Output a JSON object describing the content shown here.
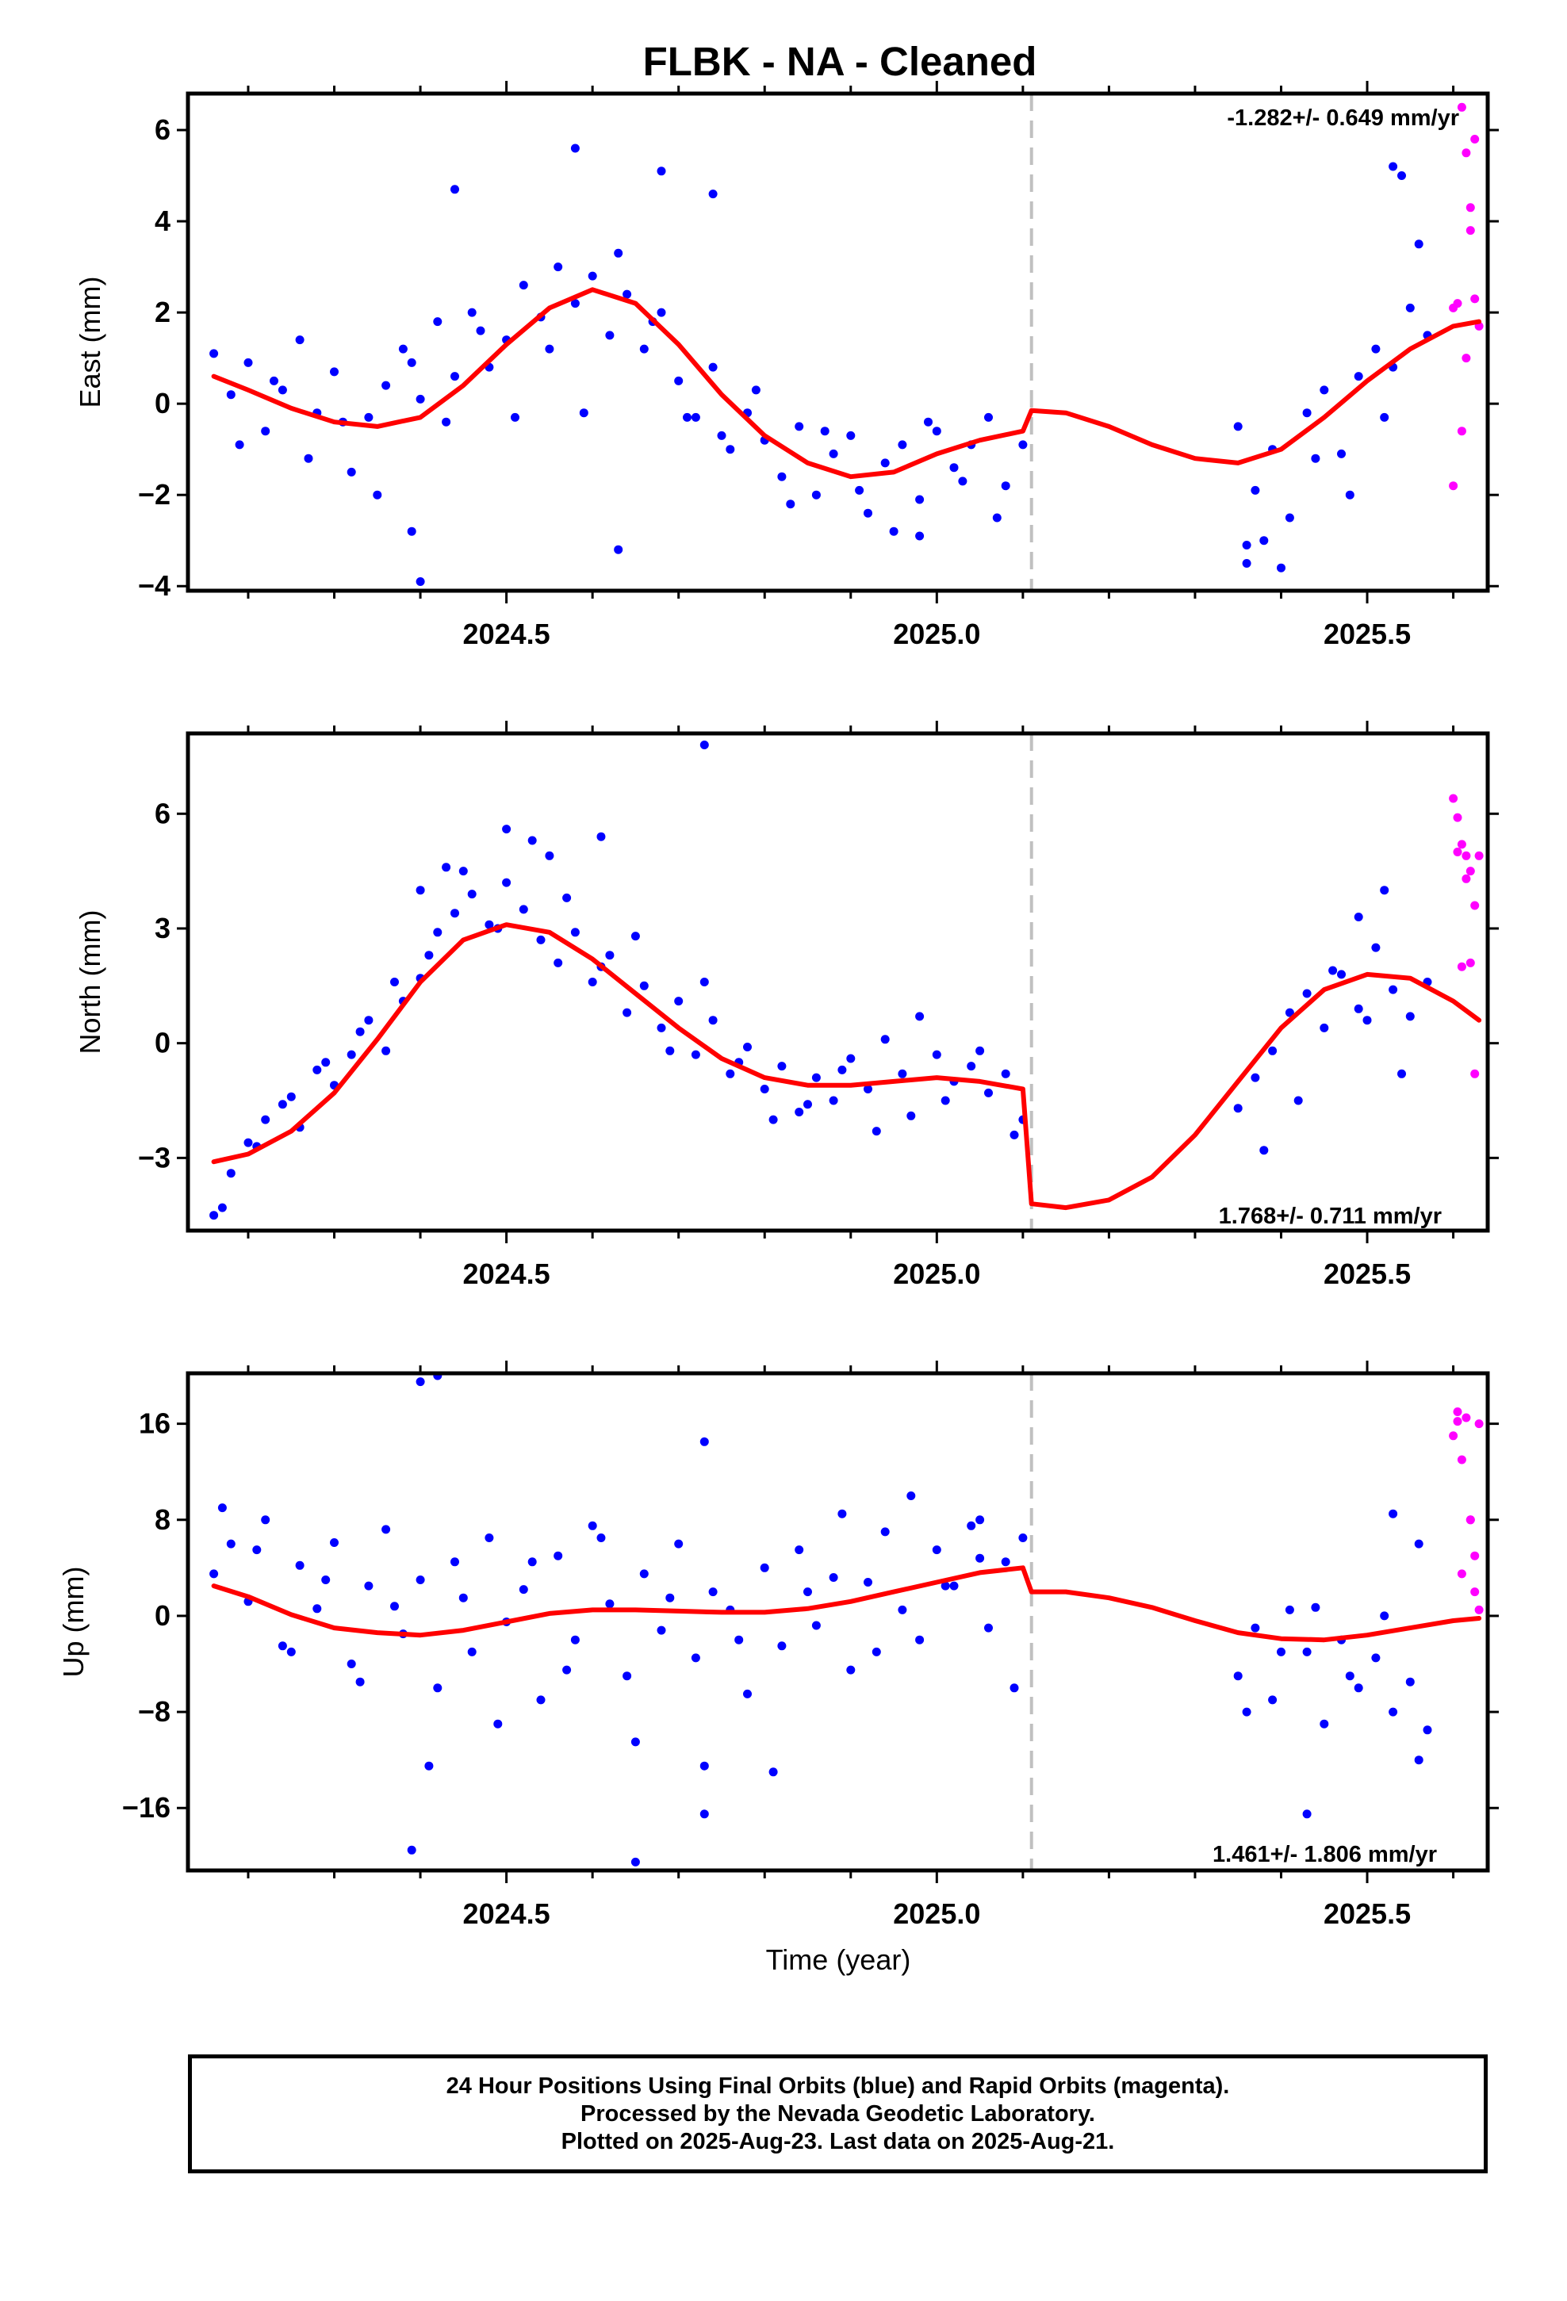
{
  "title": "FLBK  - NA - Cleaned",
  "colors": {
    "final_orbits": "#0000ff",
    "rapid_orbits": "#ff00ff",
    "model": "#ff0000",
    "offset_line": "#c0c0c0"
  },
  "xaxis": {
    "label": "Time (year)",
    "ticks": [
      2024.5,
      2025.0,
      2025.5
    ],
    "tick_labels": [
      "2024.5",
      "2025.0",
      "2025.5"
    ]
  },
  "footer": {
    "line1": "24 Hour Positions Using Final Orbits (blue) and Rapid Orbits (magenta).",
    "line2": "Processed by the Nevada Geodetic Laboratory.",
    "line3": "Plotted on 2025-Aug-23. Last data on 2025-Aug-21."
  },
  "chart_data": [
    {
      "type": "scatter",
      "title": "FLBK  - NA - Cleaned",
      "ylabel": "East (mm)",
      "xlim": [
        2024.13,
        2025.64
      ],
      "ylim": [
        -4.1,
        6.8
      ],
      "yticks": [
        -4,
        -2,
        0,
        2,
        4,
        6
      ],
      "ytick_labels": [
        "−4",
        "−2",
        "0",
        "2",
        "4",
        "6"
      ],
      "rate_label": "-1.282+/- 0.649 mm/yr",
      "offset_epoch": 2025.11,
      "model": {
        "x": [
          2024.16,
          2024.2,
          2024.25,
          2024.3,
          2024.35,
          2024.4,
          2024.45,
          2024.5,
          2024.55,
          2024.6,
          2024.65,
          2024.7,
          2024.75,
          2024.8,
          2024.85,
          2024.9,
          2024.95,
          2025.0,
          2025.05,
          2025.1,
          2025.11,
          2025.15,
          2025.2,
          2025.25,
          2025.3,
          2025.35,
          2025.4,
          2025.45,
          2025.5,
          2025.55,
          2025.6,
          2025.63
        ],
        "y": [
          0.6,
          0.3,
          -0.1,
          -0.4,
          -0.5,
          -0.3,
          0.4,
          1.3,
          2.1,
          2.5,
          2.2,
          1.3,
          0.2,
          -0.7,
          -1.3,
          -1.6,
          -1.5,
          -1.1,
          -0.8,
          -0.6,
          -0.15,
          -0.2,
          -0.5,
          -0.9,
          -1.2,
          -1.3,
          -1.0,
          -0.3,
          0.5,
          1.2,
          1.7,
          1.8
        ]
      },
      "series": [
        {
          "name": "Final Orbits",
          "x": [
            2024.16,
            2024.18,
            2024.2,
            2024.22,
            2024.24,
            2024.26,
            2024.28,
            2024.3,
            2024.32,
            2024.34,
            2024.36,
            2024.38,
            2024.4,
            2024.42,
            2024.44,
            2024.46,
            2024.48,
            2024.5,
            2024.52,
            2024.54,
            2024.56,
            2024.58,
            2024.6,
            2024.62,
            2024.64,
            2024.66,
            2024.68,
            2024.7,
            2024.72,
            2024.74,
            2024.76,
            2024.78,
            2024.8,
            2024.82,
            2024.84,
            2024.86,
            2024.88,
            2024.9,
            2024.92,
            2024.94,
            2024.96,
            2024.98,
            2025.0,
            2025.02,
            2025.04,
            2025.06,
            2025.08,
            2025.1,
            2025.35,
            2025.37,
            2025.39,
            2025.41,
            2025.43,
            2025.45,
            2025.47,
            2025.49,
            2025.51,
            2025.53,
            2025.55,
            2025.57,
            2024.19,
            2024.23,
            2024.27,
            2024.31,
            2024.35,
            2024.39,
            2024.43,
            2024.47,
            2024.51,
            2024.55,
            2024.59,
            2024.63,
            2024.67,
            2024.71,
            2024.75,
            2024.79,
            2024.83,
            2024.87,
            2024.91,
            2024.95,
            2024.99,
            2025.03,
            2025.07,
            2025.36,
            2025.4,
            2025.44,
            2025.48,
            2025.52,
            2025.56,
            2024.44,
            2024.58,
            2024.68,
            2024.74,
            2024.39,
            2024.4,
            2024.63,
            2024.98,
            2025.36,
            2025.38,
            2025.53,
            2025.54
          ],
          "y": [
            1.1,
            0.2,
            0.9,
            -0.6,
            0.3,
            1.4,
            -0.2,
            0.7,
            -1.5,
            -0.3,
            0.4,
            1.2,
            0.1,
            1.8,
            0.6,
            2.0,
            0.8,
            1.4,
            2.6,
            1.9,
            3.0,
            2.2,
            2.8,
            1.5,
            2.4,
            1.2,
            2.0,
            0.5,
            -0.3,
            0.8,
            -1.0,
            -0.2,
            -0.8,
            -1.6,
            -0.5,
            -2.0,
            -1.1,
            -0.7,
            -2.4,
            -1.3,
            -0.9,
            -2.1,
            -0.6,
            -1.4,
            -0.9,
            -0.3,
            -1.8,
            -0.9,
            -0.5,
            -1.9,
            -1.0,
            -2.5,
            -0.2,
            0.3,
            -1.1,
            0.6,
            1.2,
            0.8,
            2.1,
            1.5,
            -0.9,
            0.5,
            -1.2,
            -0.4,
            -2.0,
            0.9,
            -0.4,
            1.6,
            -0.3,
            1.2,
            -0.2,
            3.3,
            1.8,
            -0.3,
            -0.7,
            0.3,
            -2.2,
            -0.6,
            -1.9,
            -2.8,
            -0.4,
            -1.7,
            -2.5,
            -3.1,
            -3.6,
            -1.2,
            -2.0,
            -0.3,
            3.5,
            4.7,
            5.6,
            5.1,
            4.6,
            -2.8,
            -3.9,
            -3.2,
            -2.9,
            -3.5,
            -3.0,
            5.2,
            5.0
          ]
        },
        {
          "name": "Rapid Orbits",
          "x": [
            2025.6,
            2025.605,
            2025.61,
            2025.615,
            2025.62,
            2025.625,
            2025.63,
            2025.61,
            2025.62,
            2025.6,
            2025.615,
            2025.625
          ],
          "y": [
            -1.8,
            2.2,
            6.5,
            5.5,
            4.3,
            5.8,
            1.7,
            -0.6,
            3.8,
            2.1,
            1.0,
            2.3
          ]
        }
      ]
    },
    {
      "type": "scatter",
      "ylabel": "North (mm)",
      "xlim": [
        2024.13,
        2025.64
      ],
      "ylim": [
        -4.9,
        8.1
      ],
      "yticks": [
        -3,
        0,
        3,
        6
      ],
      "ytick_labels": [
        "−3",
        "0",
        "3",
        "6"
      ],
      "rate_label": "1.768+/- 0.711 mm/yr",
      "offset_epoch": 2025.11,
      "model": {
        "x": [
          2024.16,
          2024.2,
          2024.25,
          2024.3,
          2024.35,
          2024.4,
          2024.45,
          2024.5,
          2024.55,
          2024.6,
          2024.65,
          2024.7,
          2024.75,
          2024.8,
          2024.85,
          2024.9,
          2024.95,
          2025.0,
          2025.05,
          2025.1,
          2025.11,
          2025.15,
          2025.2,
          2025.25,
          2025.3,
          2025.35,
          2025.4,
          2025.45,
          2025.5,
          2025.55,
          2025.6,
          2025.63
        ],
        "y": [
          -3.1,
          -2.9,
          -2.3,
          -1.3,
          0.1,
          1.6,
          2.7,
          3.1,
          2.9,
          2.2,
          1.3,
          0.4,
          -0.4,
          -0.9,
          -1.1,
          -1.1,
          -1.0,
          -0.9,
          -1.0,
          -1.2,
          -4.2,
          -4.3,
          -4.1,
          -3.5,
          -2.4,
          -1.0,
          0.4,
          1.4,
          1.8,
          1.7,
          1.1,
          0.6
        ]
      },
      "series": [
        {
          "name": "Final Orbits",
          "x": [
            2024.16,
            2024.18,
            2024.2,
            2024.22,
            2024.24,
            2024.26,
            2024.28,
            2024.3,
            2024.32,
            2024.34,
            2024.36,
            2024.38,
            2024.4,
            2024.42,
            2024.44,
            2024.46,
            2024.48,
            2024.5,
            2024.52,
            2024.54,
            2024.56,
            2024.58,
            2024.6,
            2024.62,
            2024.64,
            2024.66,
            2024.68,
            2024.7,
            2024.72,
            2024.74,
            2024.76,
            2024.78,
            2024.8,
            2024.82,
            2024.84,
            2024.86,
            2024.88,
            2024.9,
            2024.92,
            2024.94,
            2024.96,
            2024.98,
            2025.0,
            2025.02,
            2025.04,
            2025.06,
            2025.08,
            2025.1,
            2025.35,
            2025.37,
            2025.39,
            2025.41,
            2025.43,
            2025.45,
            2025.47,
            2025.49,
            2025.51,
            2025.53,
            2025.55,
            2025.57,
            2024.17,
            2024.21,
            2024.25,
            2024.29,
            2024.33,
            2024.37,
            2024.41,
            2024.45,
            2024.49,
            2024.53,
            2024.57,
            2024.61,
            2024.65,
            2024.69,
            2024.73,
            2024.77,
            2024.81,
            2024.85,
            2024.89,
            2024.93,
            2024.97,
            2025.01,
            2025.05,
            2025.09,
            2025.38,
            2025.42,
            2025.46,
            2025.5,
            2025.54,
            2024.73,
            2024.61,
            2024.4,
            2024.43,
            2024.5,
            2024.55,
            2025.49,
            2025.52
          ],
          "y": [
            -4.5,
            -3.4,
            -2.6,
            -2.0,
            -1.6,
            -2.2,
            -0.7,
            -1.1,
            -0.3,
            0.6,
            -0.2,
            1.1,
            1.7,
            2.9,
            3.4,
            3.9,
            3.1,
            4.2,
            3.5,
            2.7,
            2.1,
            2.9,
            1.6,
            2.3,
            0.8,
            1.5,
            0.4,
            1.1,
            -0.3,
            0.6,
            -0.8,
            -0.1,
            -1.2,
            -0.6,
            -1.8,
            -0.9,
            -1.5,
            -0.4,
            -1.2,
            0.1,
            -0.8,
            0.7,
            -0.3,
            -1.0,
            -0.6,
            -1.3,
            -0.8,
            -2.0,
            -1.7,
            -0.9,
            -0.2,
            0.8,
            1.3,
            0.4,
            1.8,
            0.9,
            2.5,
            1.4,
            0.7,
            1.6,
            -4.3,
            -2.7,
            -1.4,
            -0.5,
            0.3,
            1.6,
            2.3,
            4.5,
            3.0,
            5.3,
            3.8,
            2.0,
            2.8,
            -0.2,
            1.6,
            -0.5,
            -2.0,
            -1.6,
            -0.7,
            -2.3,
            -1.9,
            -1.5,
            -0.2,
            -2.4,
            -2.8,
            -1.5,
            1.9,
            0.6,
            -0.8,
            7.8,
            5.4,
            4.0,
            4.6,
            5.6,
            4.9,
            3.3,
            4.0
          ]
        },
        {
          "name": "Rapid Orbits",
          "x": [
            2025.6,
            2025.605,
            2025.61,
            2025.615,
            2025.62,
            2025.625,
            2025.63,
            2025.61,
            2025.62,
            2025.625,
            2025.605,
            2025.615
          ],
          "y": [
            6.4,
            5.9,
            5.2,
            4.9,
            4.5,
            3.6,
            4.9,
            2.0,
            2.1,
            -0.8,
            5.0,
            4.3
          ]
        }
      ]
    },
    {
      "type": "scatter",
      "ylabel": "Up (mm)",
      "xlabel": "Time (year)",
      "xlim": [
        2024.13,
        2025.64
      ],
      "ylim": [
        -21.2,
        20.2
      ],
      "yticks": [
        -16,
        -8,
        0,
        8,
        16
      ],
      "ytick_labels": [
        "−16",
        "−8",
        "0",
        "8",
        "16"
      ],
      "rate_label": "1.461+/- 1.806 mm/yr",
      "offset_epoch": 2025.11,
      "model": {
        "x": [
          2024.16,
          2024.2,
          2024.25,
          2024.3,
          2024.35,
          2024.4,
          2024.45,
          2024.5,
          2024.55,
          2024.6,
          2024.65,
          2024.7,
          2024.75,
          2024.8,
          2024.85,
          2024.9,
          2024.95,
          2025.0,
          2025.05,
          2025.1,
          2025.11,
          2025.15,
          2025.2,
          2025.25,
          2025.3,
          2025.35,
          2025.4,
          2025.45,
          2025.5,
          2025.55,
          2025.6,
          2025.63
        ],
        "y": [
          2.5,
          1.6,
          0.1,
          -1.0,
          -1.4,
          -1.6,
          -1.2,
          -0.5,
          0.2,
          0.5,
          0.5,
          0.4,
          0.3,
          0.3,
          0.6,
          1.2,
          2.0,
          2.8,
          3.6,
          4.0,
          2.0,
          2.0,
          1.5,
          0.7,
          -0.4,
          -1.4,
          -1.9,
          -2.0,
          -1.6,
          -1.0,
          -0.4,
          -0.2
        ]
      },
      "series": [
        {
          "name": "Final Orbits",
          "x": [
            2024.16,
            2024.18,
            2024.2,
            2024.22,
            2024.24,
            2024.26,
            2024.28,
            2024.3,
            2024.32,
            2024.34,
            2024.36,
            2024.38,
            2024.4,
            2024.42,
            2024.44,
            2024.46,
            2024.48,
            2024.5,
            2024.52,
            2024.54,
            2024.56,
            2024.58,
            2024.6,
            2024.62,
            2024.64,
            2024.66,
            2024.68,
            2024.7,
            2024.72,
            2024.74,
            2024.76,
            2024.78,
            2024.8,
            2024.82,
            2024.84,
            2024.86,
            2024.88,
            2024.9,
            2024.92,
            2024.94,
            2024.96,
            2024.98,
            2025.0,
            2025.02,
            2025.04,
            2025.06,
            2025.08,
            2025.1,
            2025.35,
            2025.37,
            2025.39,
            2025.41,
            2025.43,
            2025.45,
            2025.47,
            2025.49,
            2025.51,
            2025.53,
            2025.55,
            2025.57,
            2024.17,
            2024.21,
            2024.25,
            2024.29,
            2024.33,
            2024.37,
            2024.41,
            2024.45,
            2024.49,
            2024.53,
            2024.57,
            2024.61,
            2024.65,
            2024.69,
            2024.73,
            2024.77,
            2024.81,
            2024.85,
            2024.89,
            2024.93,
            2024.97,
            2025.01,
            2025.05,
            2025.09,
            2025.36,
            2025.4,
            2025.44,
            2025.48,
            2025.52,
            2025.56,
            2024.4,
            2024.42,
            2024.73,
            2024.39,
            2024.65,
            2024.73,
            2025.43,
            2025.53,
            2025.56,
            2025.05
          ],
          "y": [
            3.5,
            6.0,
            1.2,
            8.0,
            -2.5,
            4.2,
            0.6,
            6.1,
            -4.0,
            2.5,
            7.2,
            -1.5,
            3.0,
            -6.0,
            4.5,
            -3.0,
            6.5,
            -0.5,
            2.2,
            -7.0,
            5.0,
            -2.0,
            7.5,
            1.0,
            -5.0,
            3.5,
            -1.2,
            6.0,
            -3.5,
            2.0,
            0.5,
            -6.5,
            4.0,
            -2.5,
            5.5,
            -0.8,
            3.2,
            -4.5,
            2.8,
            7.0,
            0.5,
            -2.0,
            5.5,
            2.5,
            7.5,
            -1.0,
            4.5,
            6.5,
            -5.0,
            -1.0,
            -7.0,
            0.5,
            -3.0,
            -9.0,
            -2.0,
            -6.0,
            -3.5,
            -8.0,
            -5.5,
            -9.5,
            9.0,
            5.5,
            -3.0,
            3.0,
            -5.5,
            0.8,
            -12.5,
            1.5,
            -9.0,
            4.5,
            -4.5,
            6.5,
            -10.5,
            1.5,
            -12.5,
            -2.0,
            -13.0,
            2.0,
            8.5,
            -3.0,
            10.0,
            2.5,
            4.8,
            -6.0,
            -8.0,
            -3.0,
            0.7,
            -5.0,
            0.0,
            -12.0,
            19.5,
            20.0,
            14.5,
            -19.5,
            -20.5,
            -16.5,
            -16.5,
            8.5,
            6.0,
            8.0
          ]
        },
        {
          "name": "Rapid Orbits",
          "x": [
            2025.6,
            2025.605,
            2025.61,
            2025.615,
            2025.62,
            2025.625,
            2025.63,
            2025.61,
            2025.62,
            2025.625,
            2025.63,
            2025.605
          ],
          "y": [
            15.0,
            17.0,
            13.0,
            16.5,
            8.0,
            2.0,
            16.0,
            3.5,
            8.0,
            5.0,
            0.5,
            16.2
          ]
        }
      ]
    }
  ]
}
